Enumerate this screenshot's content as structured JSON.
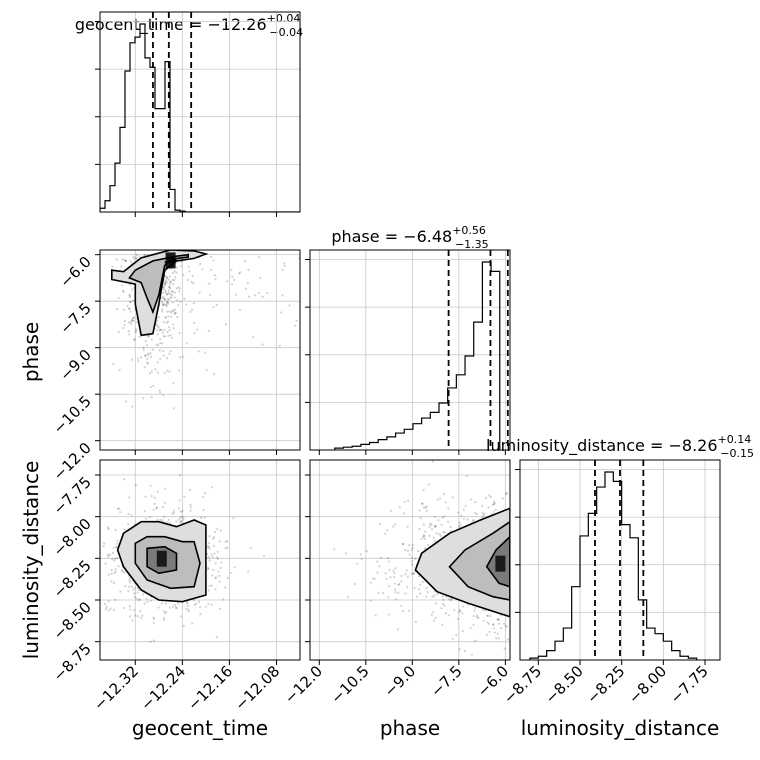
{
  "chart_data": {
    "type": "corner",
    "parameters": [
      "geocent_time",
      "phase",
      "luminosity_distance"
    ],
    "axis_labels": {
      "geocent_time": "geocent_time",
      "phase": "phase",
      "luminosity_distance": "luminosity_distance"
    },
    "ranges": {
      "geocent_time": [
        -12.38,
        -12.04
      ],
      "phase": [
        -12.3,
        -5.85
      ],
      "luminosity_distance": [
        -8.86,
        -7.66
      ]
    },
    "ticks": {
      "geocent_time": {
        "values": [
          -12.32,
          -12.24,
          -12.16,
          -12.08
        ],
        "labels": [
          "−12.32",
          "−12.24",
          "−12.16",
          "−12.08"
        ]
      },
      "phase": {
        "values": [
          -12.0,
          -10.5,
          -9.0,
          -7.5,
          -6.0
        ],
        "labels": [
          "−12.0",
          "−10.5",
          "−9.0",
          "−7.5",
          "−6.0"
        ]
      },
      "luminosity_distance": {
        "values": [
          -8.75,
          -8.5,
          -8.25,
          -8.0,
          -7.75
        ],
        "labels": [
          "−8.75",
          "−8.50",
          "−8.25",
          "−8.00",
          "−7.75"
        ]
      }
    },
    "summaries": [
      {
        "name": "geocent_time",
        "label": "geocent_time",
        "median": "−12.26",
        "plus": "+0.04",
        "minus": "−0.04",
        "quantiles": [
          -12.29,
          -12.263,
          -12.225
        ]
      },
      {
        "name": "phase",
        "label": "phase",
        "median": "−6.48",
        "plus": "+0.56",
        "minus": "−1.35",
        "quantiles": [
          -7.83,
          -6.48,
          -5.92
        ]
      },
      {
        "name": "luminosity_distance",
        "label": "luminosity_distance",
        "median": "−8.26",
        "plus": "+0.14",
        "minus": "−0.15",
        "quantiles": [
          -8.41,
          -8.26,
          -8.12
        ]
      }
    ],
    "histograms": {
      "geocent_time": {
        "bin_edges_start": -12.38,
        "bin_width": 0.0085,
        "counts": [
          0.02,
          0.06,
          0.14,
          0.26,
          0.45,
          0.75,
          0.9,
          0.93,
          1.0,
          0.82,
          0.77,
          0.55,
          0.55,
          0.8,
          0.12,
          0.01,
          0.005,
          0,
          0,
          0,
          0,
          0,
          0,
          0,
          0,
          0,
          0,
          0,
          0,
          0,
          0,
          0,
          0,
          0,
          0,
          0,
          0,
          0,
          0,
          0
        ]
      },
      "phase": {
        "bin_edges_start": -11.5,
        "bin_width": 0.28,
        "counts": [
          0.01,
          0.015,
          0.02,
          0.03,
          0.04,
          0.055,
          0.07,
          0.09,
          0.11,
          0.14,
          0.17,
          0.2,
          0.25,
          0.33,
          0.4,
          0.5,
          0.68,
          1.0,
          0.95
        ]
      },
      "luminosity_distance": {
        "bin_edges_start": -8.8,
        "bin_width": 0.05,
        "counts": [
          0.01,
          0.02,
          0.05,
          0.1,
          0.17,
          0.39,
          0.66,
          0.78,
          0.92,
          1.0,
          0.95,
          0.72,
          0.65,
          0.32,
          0.17,
          0.14,
          0.1,
          0.05,
          0.02,
          0.01
        ]
      }
    },
    "contours": {
      "phase_vs_geocent_time": {
        "x": "geocent_time",
        "y": "phase",
        "levels": [
          [
            [
              -12.34,
              -6.55
            ],
            [
              -12.31,
              -6.1
            ],
            [
              -12.26,
              -5.85
            ],
            [
              -12.22,
              -5.88
            ],
            [
              -12.2,
              -5.98
            ],
            [
              -12.22,
              -6.12
            ],
            [
              -12.25,
              -6.2
            ],
            [
              -12.27,
              -6.5
            ],
            [
              -12.28,
              -7.6
            ],
            [
              -12.29,
              -8.55
            ],
            [
              -12.31,
              -8.6
            ],
            [
              -12.32,
              -7.6
            ],
            [
              -12.32,
              -6.95
            ],
            [
              -12.36,
              -6.8
            ],
            [
              -12.36,
              -6.5
            ]
          ],
          [
            [
              -12.32,
              -6.5
            ],
            [
              -12.29,
              -6.2
            ],
            [
              -12.25,
              -6.05
            ],
            [
              -12.23,
              -6.0
            ],
            [
              -12.23,
              -6.08
            ],
            [
              -12.26,
              -6.15
            ],
            [
              -12.27,
              -6.35
            ],
            [
              -12.28,
              -7.3
            ],
            [
              -12.29,
              -7.85
            ],
            [
              -12.3,
              -7.4
            ],
            [
              -12.31,
              -6.9
            ],
            [
              -12.33,
              -6.75
            ]
          ],
          [
            [
              -12.27,
              -6.25
            ],
            [
              -12.26,
              -6.2
            ],
            [
              -12.25,
              -6.18
            ],
            [
              -12.26,
              -6.24
            ]
          ]
        ]
      },
      "luminosity_distance_vs_geocent_time": {
        "x": "geocent_time",
        "y": "luminosity_distance",
        "levels": [
          [
            [
              -12.34,
              -8.1
            ],
            [
              -12.31,
              -8.03
            ],
            [
              -12.28,
              -8.03
            ],
            [
              -12.25,
              -8.06
            ],
            [
              -12.22,
              -8.02
            ],
            [
              -12.2,
              -8.05
            ],
            [
              -12.2,
              -8.28
            ],
            [
              -12.2,
              -8.47
            ],
            [
              -12.24,
              -8.51
            ],
            [
              -12.28,
              -8.5
            ],
            [
              -12.31,
              -8.44
            ],
            [
              -12.34,
              -8.3
            ],
            [
              -12.35,
              -8.2
            ]
          ],
          [
            [
              -12.32,
              -8.16
            ],
            [
              -12.3,
              -8.12
            ],
            [
              -12.27,
              -8.12
            ],
            [
              -12.24,
              -8.15
            ],
            [
              -12.22,
              -8.15
            ],
            [
              -12.21,
              -8.28
            ],
            [
              -12.22,
              -8.42
            ],
            [
              -12.26,
              -8.43
            ],
            [
              -12.3,
              -8.38
            ],
            [
              -12.32,
              -8.28
            ]
          ],
          [
            [
              -12.3,
              -8.19
            ],
            [
              -12.27,
              -8.18
            ],
            [
              -12.25,
              -8.22
            ],
            [
              -12.25,
              -8.32
            ],
            [
              -12.28,
              -8.34
            ],
            [
              -12.3,
              -8.3
            ]
          ]
        ]
      },
      "luminosity_distance_vs_phase": {
        "x": "phase",
        "y": "luminosity_distance",
        "levels": [
          [
            [
              -5.85,
              -7.95
            ],
            [
              -6.8,
              -8.02
            ],
            [
              -7.8,
              -8.1
            ],
            [
              -8.7,
              -8.22
            ],
            [
              -8.9,
              -8.32
            ],
            [
              -8.2,
              -8.45
            ],
            [
              -7.2,
              -8.52
            ],
            [
              -6.2,
              -8.58
            ],
            [
              -5.85,
              -8.6
            ]
          ],
          [
            [
              -5.85,
              -8.03
            ],
            [
              -6.4,
              -8.1
            ],
            [
              -7.3,
              -8.2
            ],
            [
              -7.8,
              -8.3
            ],
            [
              -7.2,
              -8.42
            ],
            [
              -6.4,
              -8.48
            ],
            [
              -5.85,
              -8.5
            ]
          ],
          [
            [
              -5.85,
              -8.12
            ],
            [
              -6.3,
              -8.2
            ],
            [
              -6.6,
              -8.3
            ],
            [
              -6.2,
              -8.4
            ],
            [
              -5.85,
              -8.42
            ]
          ]
        ]
      }
    },
    "grid": true
  }
}
